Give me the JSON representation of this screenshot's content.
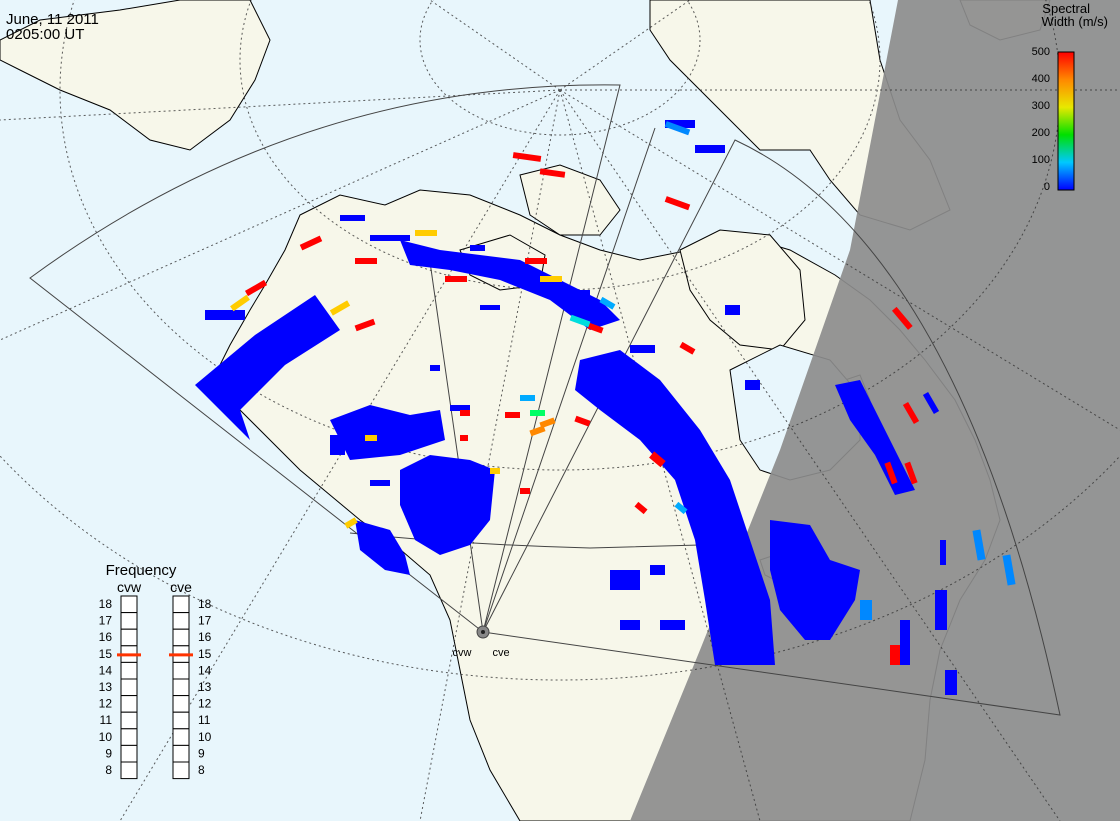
{
  "header": {
    "date": "June, 11 2011",
    "time": "0205:00 UT"
  },
  "colorbar": {
    "title_line1": "Spectral",
    "title_line2": "Width (m/s)",
    "ticks": [
      "500",
      "400",
      "300",
      "200",
      "100",
      "0"
    ]
  },
  "radars": {
    "west": "cvw",
    "east": "cve"
  },
  "frequency_panel": {
    "title": "Frequency",
    "labels": [
      "18",
      "17",
      "16",
      "15",
      "14",
      "13",
      "12",
      "11",
      "10",
      "9",
      "8"
    ],
    "cvw_selected": 15,
    "cve_selected": 15
  },
  "colors": {
    "ocean": "#e8f6fc",
    "land": "#f7f7ea",
    "night": "#8c8c8c",
    "scatter_low": "#0000ff",
    "scatter_high": "#ff0000",
    "marker": "#ff3300"
  }
}
